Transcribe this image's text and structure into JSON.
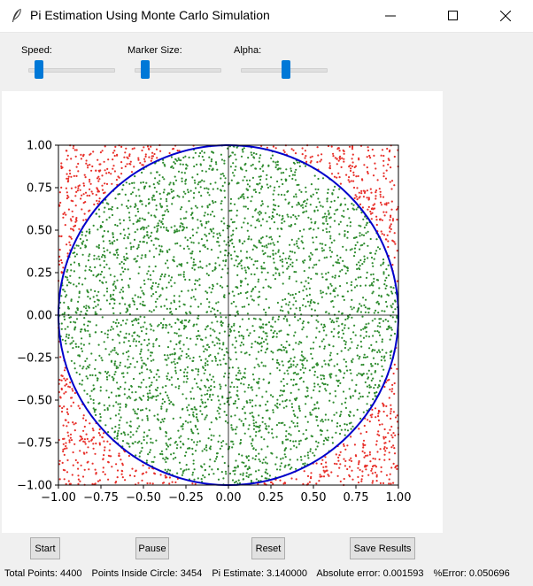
{
  "window": {
    "title": "Pi Estimation Using Monte Carlo Simulation"
  },
  "icons": {
    "app": "feather-icon",
    "minimize": "minimize-icon",
    "maximize": "maximize-icon",
    "close": "close-icon"
  },
  "controls": [
    {
      "label": "Speed:",
      "level": 0.13
    },
    {
      "label": "Marker Size:",
      "level": 0.13
    },
    {
      "label": "Alpha:",
      "level": 0.53
    }
  ],
  "buttons": {
    "start": "Start",
    "pause": "Pause",
    "reset": "Reset",
    "save": "Save Results"
  },
  "status": {
    "total_points": "Total Points: 4400",
    "inside": "Points Inside Circle: 3454",
    "pi_estimate": "Pi Estimate: 3.140000",
    "abs_error": "Absolute error: 0.001593",
    "pct_error": "%Error: 0.050696"
  },
  "chart_data": {
    "type": "scatter",
    "title": "",
    "xlabel": "",
    "ylabel": "",
    "xlim": [
      -1.0,
      1.0
    ],
    "ylim": [
      -1.0,
      1.0
    ],
    "x_ticks": [
      "−1.00",
      "−0.75",
      "−0.50",
      "−0.25",
      "0.00",
      "0.25",
      "0.50",
      "0.75",
      "1.00"
    ],
    "y_ticks": [
      "1.00",
      "0.75",
      "0.50",
      "0.25",
      "0.00",
      "−0.25",
      "−0.50",
      "−0.75",
      "−1.00"
    ],
    "total_points": 4400,
    "inside_points": 3454,
    "inside_color": "#2e8b2e",
    "outside_color": "#e8302a",
    "circle_color": "#0000cc",
    "circle": {
      "cx": 0,
      "cy": 0,
      "r": 1
    },
    "axes_lines": true,
    "grid": false
  }
}
